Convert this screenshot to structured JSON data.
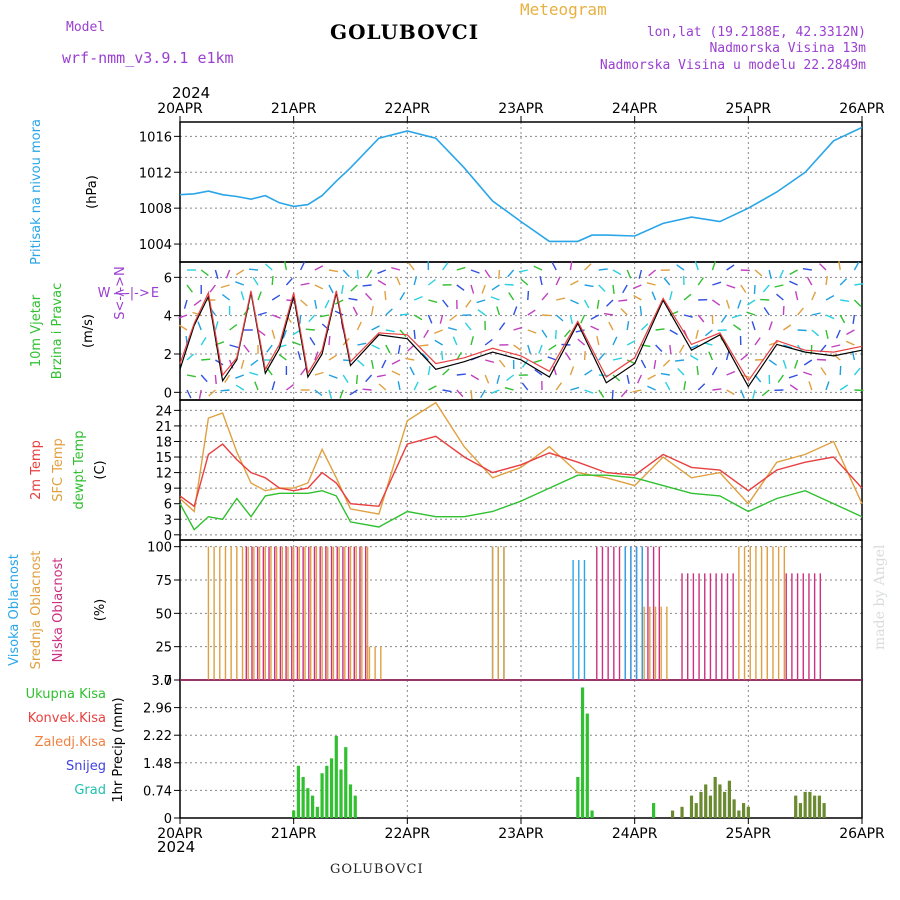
{
  "header": {
    "model_label": "Model",
    "model_name": "wrf-nmm_v3.9.1 e1km",
    "title": "GOLUBOVCI",
    "meteogram": "Meteogram",
    "lonlat": "lon,lat (19.2188E, 42.3312N)",
    "altitude": "Nadmorska Visina 13m",
    "model_altitude": "Nadmorska Visina u modelu 22.2849m",
    "year_top": "2024",
    "year_bottom": "2024",
    "footer": "GOLUBOVCI",
    "made_by": "made by Angel"
  },
  "colors": {
    "pressure": "#2aa6e8",
    "wind_speed": "#000000",
    "wind_gust": "#e84040",
    "temp2m": "#e84040",
    "sfc_temp": "#e0a040",
    "dewpoint": "#30c030",
    "high_cloud": "#2aa6e8",
    "mid_cloud": "#e0a040",
    "low_cloud": "#cc3080",
    "total_precip": "#30c030",
    "conv_precip": "#e84040",
    "grid": "#888888"
  },
  "chart_data": [
    {
      "type": "line",
      "panel": "pressure",
      "ylabel_lines": [
        "Pritisak na nivou mora",
        "(hPa)"
      ],
      "yticks": [
        1004,
        1008,
        1012,
        1016
      ],
      "ylim": [
        1002,
        1017.6
      ],
      "x_hours": [
        0,
        3,
        6,
        9,
        12,
        15,
        18,
        21,
        24,
        27,
        30,
        33,
        36,
        42,
        48,
        54,
        60,
        66,
        72,
        78,
        84,
        87,
        90,
        96,
        102,
        108,
        114,
        120,
        126,
        132,
        138,
        144
      ],
      "series": [
        {
          "values": [
            1009.5,
            1009.6,
            1009.9,
            1009.5,
            1009.3,
            1009,
            1009.4,
            1008.6,
            1008.2,
            1008.4,
            1009.4,
            1011,
            1012.5,
            1015.8,
            1016.6,
            1015.8,
            1012.5,
            1008.8,
            1006.5,
            1004.3,
            1004.3,
            1005,
            1005,
            1004.9,
            1006.3,
            1007,
            1006.5,
            1008,
            1009.8,
            1012,
            1015.5,
            1017
          ]
        }
      ]
    },
    {
      "type": "line",
      "panel": "wind",
      "ylabel_lines": [
        "10m Vjetar",
        "Brzina i Pravac",
        "(m/s)"
      ],
      "compass": [
        "W",
        "<-|->",
        "E",
        "S<-|->N"
      ],
      "yticks": [
        0,
        2,
        4,
        6
      ],
      "ylim": [
        -0.4,
        6.8
      ],
      "x_hours": [
        0,
        3,
        6,
        9,
        12,
        15,
        18,
        21,
        24,
        27,
        30,
        33,
        36,
        42,
        48,
        54,
        60,
        66,
        72,
        78,
        84,
        90,
        96,
        102,
        108,
        114,
        120,
        126,
        132,
        138,
        144
      ],
      "series": [
        {
          "values": [
            1.2,
            3.5,
            5.0,
            0.6,
            1.7,
            5.2,
            1.0,
            2.3,
            5.0,
            0.8,
            2.0,
            5.2,
            1.4,
            3.0,
            2.8,
            1.2,
            1.6,
            2.1,
            1.7,
            0.8,
            3.6,
            0.5,
            1.5,
            4.8,
            2.2,
            3.0,
            0.3,
            2.5,
            2.1,
            1.9,
            2.2
          ]
        },
        {
          "values": [
            1.5,
            3.6,
            5.2,
            0.9,
            1.8,
            5.3,
            1.2,
            2.5,
            5.2,
            1.0,
            2.2,
            5.3,
            1.6,
            3.1,
            3.0,
            1.5,
            1.8,
            2.3,
            1.9,
            1.1,
            3.7,
            0.8,
            1.8,
            4.9,
            2.5,
            3.1,
            0.6,
            2.7,
            2.2,
            2.1,
            2.4
          ]
        }
      ]
    },
    {
      "type": "line",
      "panel": "temperature",
      "ylabel_lines": [
        "2m Temp",
        "SFC Temp",
        "dewpt Temp",
        "(C)"
      ],
      "yticks": [
        0,
        3,
        6,
        9,
        12,
        15,
        18,
        21,
        24
      ],
      "ylim": [
        -1,
        26
      ],
      "x_hours": [
        0,
        3,
        6,
        9,
        12,
        15,
        18,
        21,
        24,
        27,
        30,
        33,
        36,
        42,
        48,
        54,
        60,
        66,
        72,
        78,
        84,
        90,
        96,
        102,
        108,
        114,
        120,
        126,
        132,
        138,
        144
      ],
      "series": [
        {
          "values": [
            7.5,
            5.5,
            15.5,
            17.5,
            14.5,
            12,
            11,
            9,
            8.5,
            9,
            12,
            10,
            6,
            5.5,
            17.5,
            19,
            15,
            12,
            13.5,
            15.8,
            14,
            12,
            11.5,
            15.5,
            13,
            12.5,
            8.5,
            12.5,
            14,
            15,
            9
          ]
        },
        {
          "values": [
            7,
            4.5,
            22.5,
            23.5,
            16,
            10,
            8.5,
            9,
            9,
            10,
            16.5,
            11,
            5,
            4,
            22,
            25.5,
            17,
            11,
            13,
            17,
            12,
            11,
            9.5,
            15,
            11,
            12,
            6,
            14,
            15.5,
            18,
            6
          ]
        },
        {
          "values": [
            6,
            1,
            3.5,
            3,
            7,
            3.5,
            7.5,
            8,
            8,
            8,
            8.5,
            7.5,
            2.5,
            1.5,
            4.5,
            3.5,
            3.5,
            4.5,
            6.5,
            9,
            11.5,
            11.5,
            11,
            9.5,
            8,
            7.5,
            4.5,
            7,
            8.5,
            6,
            3.5
          ]
        }
      ]
    },
    {
      "type": "bar",
      "panel": "clouds",
      "ylabel_lines": [
        "Visoka Oblacnost",
        "Srednja Oblacnost",
        "Niska Oblacnost",
        "(%)"
      ],
      "yticks": [
        0,
        25,
        50,
        75,
        100
      ],
      "ylim": [
        0,
        105
      ],
      "segments": [
        {
          "layer": "mid",
          "from_hour": 6,
          "to_hour": 40,
          "value": 100
        },
        {
          "layer": "low",
          "from_hour": 14,
          "to_hour": 40,
          "value": 100
        },
        {
          "layer": "mid",
          "from_hour": 40,
          "to_hour": 43,
          "value": 25
        },
        {
          "layer": "high",
          "from_hour": 66,
          "to_hour": 69,
          "value": 100
        },
        {
          "layer": "mid",
          "from_hour": 66,
          "to_hour": 69,
          "value": 100
        },
        {
          "layer": "high",
          "from_hour": 83,
          "to_hour": 86,
          "value": 90
        },
        {
          "layer": "low",
          "from_hour": 88,
          "to_hour": 102,
          "value": 100
        },
        {
          "layer": "high",
          "from_hour": 94,
          "to_hour": 98,
          "value": 100
        },
        {
          "layer": "mid",
          "from_hour": 98,
          "to_hour": 104,
          "value": 55
        },
        {
          "layer": "low",
          "from_hour": 106,
          "to_hour": 118,
          "value": 80
        },
        {
          "layer": "mid",
          "from_hour": 118,
          "to_hour": 128,
          "value": 100
        },
        {
          "layer": "low",
          "from_hour": 128,
          "to_hour": 136,
          "value": 80
        }
      ]
    },
    {
      "type": "bar",
      "panel": "precipitation",
      "ylabel_lines": [
        "1hr Precip (mm)"
      ],
      "legend": [
        "Ukupna Kisa",
        "Konvek.Kisa",
        "Zaledj.Kisa",
        "Snijeg",
        "Grad"
      ],
      "yticks": [
        0,
        0.74,
        1.48,
        2.22,
        2.96,
        3.7
      ],
      "ytick_labels": [
        "0",
        "0.74",
        "1.48",
        "2.22",
        "2.96",
        "3.7"
      ],
      "ylim": [
        0,
        3.7
      ],
      "x_hours": [
        24,
        25,
        26,
        27,
        28,
        29,
        30,
        31,
        32,
        33,
        34,
        35,
        36,
        37,
        38,
        84,
        85,
        86,
        87,
        88,
        100,
        104,
        106,
        108,
        109,
        110,
        111,
        112,
        113,
        114,
        115,
        116,
        117,
        118,
        119,
        120,
        130,
        131,
        132,
        133,
        134,
        135,
        136
      ],
      "values": [
        0.2,
        1.4,
        1.1,
        0.8,
        0.6,
        0.3,
        1.2,
        1.4,
        1.6,
        2.2,
        1.3,
        1.9,
        0.9,
        0.6,
        0,
        1.1,
        3.5,
        2.8,
        0.2,
        0,
        0.4,
        0.2,
        0.3,
        0.6,
        0.4,
        0.7,
        0.9,
        0.6,
        1.1,
        0.9,
        0.7,
        1.0,
        0.5,
        0.2,
        0.4,
        0.3,
        0.6,
        0.4,
        0.7,
        0.7,
        0.6,
        0.6,
        0.4
      ]
    }
  ],
  "xaxis": {
    "start_hour": 0,
    "end_hour": 144,
    "tick_hours": [
      0,
      24,
      48,
      72,
      96,
      120,
      144
    ],
    "labels": [
      "20APR",
      "21APR",
      "22APR",
      "23APR",
      "24APR",
      "25APR",
      "26APR"
    ]
  }
}
